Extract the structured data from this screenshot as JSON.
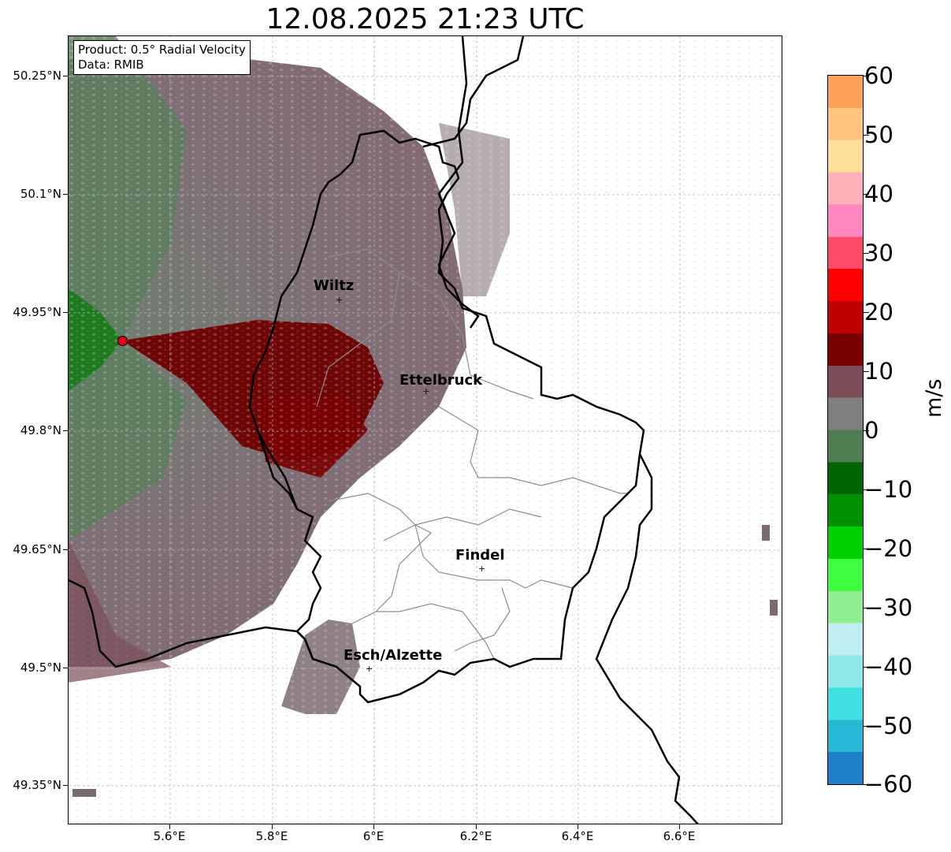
{
  "title": "12.08.2025 21:23 UTC",
  "info": {
    "product": "Product: 0.5° Radial Velocity",
    "source": "Data: RMIB"
  },
  "axes": {
    "lon_ticks": [
      "5.6°E",
      "5.8°E",
      "6°E",
      "6.2°E",
      "6.4°E",
      "6.6°E"
    ],
    "lat_ticks": [
      "50.25°N",
      "50.1°N",
      "49.95°N",
      "49.8°N",
      "49.65°N",
      "49.5°N",
      "49.35°N"
    ],
    "lon_range": [
      5.4,
      6.8
    ],
    "lat_range": [
      49.3,
      50.3
    ]
  },
  "places": [
    {
      "name": "Wiltz",
      "lon": 5.93,
      "lat": 49.97
    },
    {
      "name": "Ettelbruck",
      "lon": 6.1,
      "lat": 49.85
    },
    {
      "name": "Findel",
      "lon": 6.21,
      "lat": 49.63
    },
    {
      "name": "Esch/Alzette",
      "lon": 5.99,
      "lat": 49.5
    }
  ],
  "radar": {
    "lon": 5.505,
    "lat": 49.915,
    "marker_color": "#e3001b"
  },
  "colorbar": {
    "label": "m/s",
    "ticks": [
      "60",
      "50",
      "40",
      "30",
      "20",
      "10",
      "0",
      "−10",
      "−20",
      "−30",
      "−40",
      "−50",
      "−60"
    ],
    "range": [
      -60,
      60
    ],
    "colors": [
      "#1f7fc8",
      "#28b8d6",
      "#3fe0e0",
      "#8fe8ea",
      "#c0eef0",
      "#90ee90",
      "#40ff40",
      "#00d000",
      "#009000",
      "#006400",
      "#4f7c50",
      "#7f7f7f",
      "#7a4d57",
      "#7a0000",
      "#c00000",
      "#ff0000",
      "#ff4a6a",
      "#ff87c0",
      "#ffb0b8",
      "#ffe09a",
      "#ffc47e",
      "#ffa258"
    ]
  }
}
